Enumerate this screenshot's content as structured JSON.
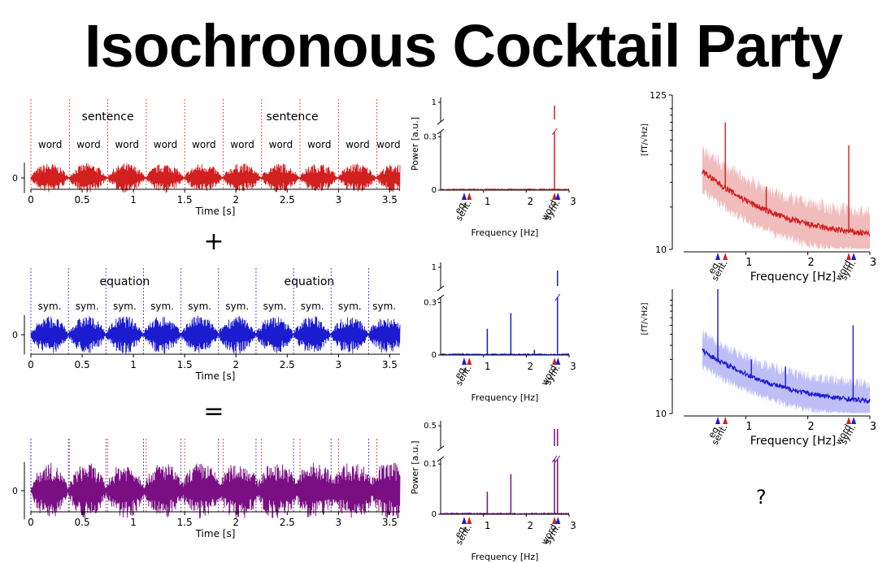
{
  "page": {
    "title": "Isochronous Cocktail Party",
    "question": "?"
  },
  "operators": {
    "plus": "+",
    "equals": "="
  },
  "colors": {
    "red": "#d21f1f",
    "blue": "#1b1bd0",
    "purple": "#7a0f84",
    "red_light": "#eaa0a0",
    "blue_light": "#a4a4f4"
  },
  "chart_data": [
    {
      "id": "wave-sentence",
      "type": "line",
      "color": "red",
      "xlabel": "Time [s]",
      "ylabel": "",
      "xlim": [
        0,
        3.6
      ],
      "xticks": [
        0,
        0.5,
        1,
        1.5,
        2,
        2.5,
        3,
        3.5
      ],
      "yticks": [
        0
      ],
      "group_labels": [
        "sentence",
        "sentence"
      ],
      "group_starts": [
        0,
        1.5
      ],
      "unit_labels": [
        "word",
        "word",
        "word",
        "word",
        "word",
        "word",
        "word",
        "word",
        "word",
        "word"
      ],
      "unit_starts": [
        0,
        0.375,
        0.75,
        1.125,
        1.5,
        1.875,
        2.25,
        2.625,
        3.0,
        3.375
      ]
    },
    {
      "id": "wave-equation",
      "type": "line",
      "color": "blue",
      "xlabel": "Time [s]",
      "ylabel": "",
      "xlim": [
        0,
        3.6
      ],
      "xticks": [
        0,
        0.5,
        1,
        1.5,
        2,
        2.5,
        3,
        3.5
      ],
      "yticks": [
        0
      ],
      "group_labels": [
        "equation",
        "equation"
      ],
      "group_starts": [
        0,
        1.83
      ],
      "unit_labels": [
        "sym.",
        "sym.",
        "sym.",
        "sym.",
        "sym.",
        "sym.",
        "sym.",
        "sym.",
        "sym.",
        "sym."
      ],
      "unit_starts": [
        0,
        0.366,
        0.732,
        1.098,
        1.464,
        1.83,
        2.196,
        2.562,
        2.928,
        3.294
      ]
    },
    {
      "id": "wave-mixture",
      "type": "line",
      "color": "purple",
      "xlabel": "Time [s]",
      "ylabel": "",
      "xlim": [
        0,
        3.6
      ],
      "xticks": [
        0,
        0.5,
        1,
        1.5,
        2,
        2.5,
        3,
        3.5
      ],
      "yticks": [
        0
      ]
    },
    {
      "id": "spec-sentence",
      "type": "line",
      "color": "red",
      "xlabel": "Frequency [Hz]",
      "ylabel": "Power [a.u.]",
      "xlim": [
        0,
        3
      ],
      "xticks": [
        1,
        2,
        3
      ],
      "yticks_low": [
        0,
        0.3
      ],
      "yticks_high": [
        1
      ],
      "peaks": [
        {
          "x": 2.66,
          "y": 1.0
        }
      ],
      "markers": [
        {
          "x": 0.55,
          "label": "eq.",
          "color": "blue"
        },
        {
          "x": 0.67,
          "label": "sent.",
          "color": "red"
        },
        {
          "x": 2.66,
          "label": "word",
          "color": "red"
        },
        {
          "x": 2.74,
          "label": "sym.",
          "color": "blue"
        }
      ]
    },
    {
      "id": "spec-equation",
      "type": "line",
      "color": "blue",
      "xlabel": "Frequency [Hz]",
      "ylabel": "",
      "xlim": [
        0,
        3
      ],
      "xticks": [
        1,
        2,
        3
      ],
      "yticks_low": [
        0,
        0.3
      ],
      "yticks_high": [
        1
      ],
      "peaks": [
        {
          "x": 1.09,
          "y": 0.15
        },
        {
          "x": 1.64,
          "y": 0.24
        },
        {
          "x": 2.19,
          "y": 0.03
        },
        {
          "x": 2.73,
          "y": 1.0
        }
      ],
      "markers": [
        {
          "x": 0.55,
          "label": "eq.",
          "color": "blue"
        },
        {
          "x": 0.67,
          "label": "sent.",
          "color": "red"
        },
        {
          "x": 2.66,
          "label": "word",
          "color": "red"
        },
        {
          "x": 2.74,
          "label": "sym.",
          "color": "blue"
        }
      ]
    },
    {
      "id": "spec-mixture",
      "type": "line",
      "color": "purple",
      "xlabel": "Frequency [Hz]",
      "ylabel": "Power [a.u.]",
      "xlim": [
        0,
        3
      ],
      "xticks": [
        1,
        2,
        3
      ],
      "yticks_low": [
        0,
        0.1
      ],
      "yticks_high": [
        0.5
      ],
      "peaks": [
        {
          "x": 1.09,
          "y": 0.045
        },
        {
          "x": 1.64,
          "y": 0.08
        },
        {
          "x": 2.66,
          "y": 0.5
        },
        {
          "x": 2.73,
          "y": 0.5
        }
      ],
      "markers": [
        {
          "x": 0.55,
          "label": "eq.",
          "color": "blue"
        },
        {
          "x": 0.67,
          "label": "sent.",
          "color": "red"
        },
        {
          "x": 2.66,
          "label": "word",
          "color": "red"
        },
        {
          "x": 2.74,
          "label": "sym.",
          "color": "blue"
        }
      ]
    },
    {
      "id": "meg-sentence",
      "type": "line",
      "color": "red",
      "xlabel": "Frequency [Hz]",
      "ylabel": "[fT/√Hz]",
      "xlim": [
        0,
        3
      ],
      "scale": "log",
      "ylim": [
        10,
        125
      ],
      "yticks": [
        10,
        125
      ],
      "peaks": [
        {
          "x": 0.67,
          "y": 80
        },
        {
          "x": 1.33,
          "y": 28
        },
        {
          "x": 2.66,
          "y": 55
        }
      ],
      "markers": [
        {
          "x": 0.55,
          "label": "eq.",
          "color": "blue"
        },
        {
          "x": 0.67,
          "label": "sent.",
          "color": "red"
        },
        {
          "x": 2.66,
          "label": "word",
          "color": "red"
        },
        {
          "x": 2.74,
          "label": "sym.",
          "color": "blue"
        }
      ],
      "xticks": [
        1,
        2,
        3
      ]
    },
    {
      "id": "meg-equation",
      "type": "line",
      "color": "blue",
      "xlabel": "Frequency [Hz]",
      "ylabel": "[fT/√Hz]",
      "xlim": [
        0,
        3
      ],
      "scale": "log",
      "ylim": [
        10,
        125
      ],
      "yticks": [
        10
      ],
      "peaks": [
        {
          "x": 0.55,
          "y": 125
        },
        {
          "x": 1.09,
          "y": 30
        },
        {
          "x": 1.64,
          "y": 26
        },
        {
          "x": 2.73,
          "y": 60
        }
      ],
      "markers": [
        {
          "x": 0.55,
          "label": "eq.",
          "color": "blue"
        },
        {
          "x": 0.67,
          "label": "sent.",
          "color": "red"
        },
        {
          "x": 2.66,
          "label": "word",
          "color": "red"
        },
        {
          "x": 2.74,
          "label": "sym.",
          "color": "blue"
        }
      ],
      "xticks": [
        1,
        2,
        3
      ]
    }
  ]
}
